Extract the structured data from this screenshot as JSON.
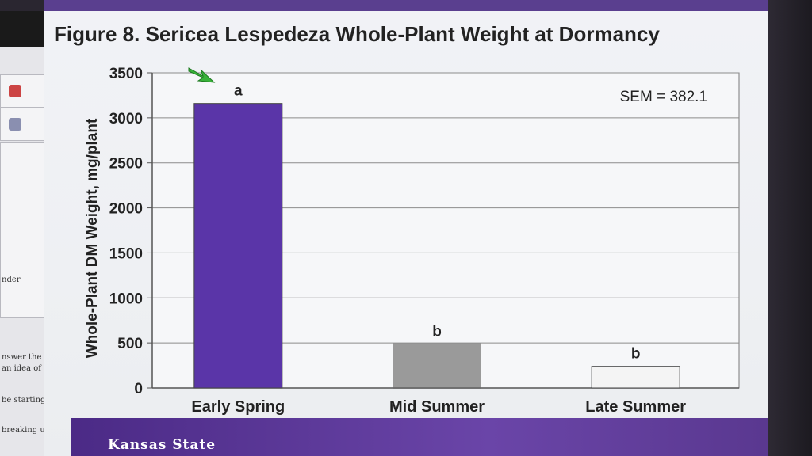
{
  "side_panel": {
    "texts": [
      "nder",
      "nswer the",
      "an idea of",
      "be starting at",
      "breaking up"
    ]
  },
  "footer": {
    "brand": "Kansas State"
  },
  "chart_data": {
    "type": "bar",
    "title": "Figure 8. Sericea Lespedeza Whole-Plant Weight at Dormancy",
    "ylabel": "Whole-Plant DM Weight, mg/plant",
    "xlabel": "",
    "categories": [
      "Early Spring",
      "Mid Summer",
      "Late Summer"
    ],
    "values": [
      3160,
      490,
      240
    ],
    "letters": [
      "a",
      "b",
      "b"
    ],
    "bar_colors": [
      "#5a35a8",
      "#9a9a9a",
      "#f4f4f4"
    ],
    "ylim": [
      0,
      3500
    ],
    "yticks": [
      0,
      500,
      1000,
      1500,
      2000,
      2500,
      3000,
      3500
    ],
    "annotation": "SEM = 382.1",
    "grid": true
  }
}
